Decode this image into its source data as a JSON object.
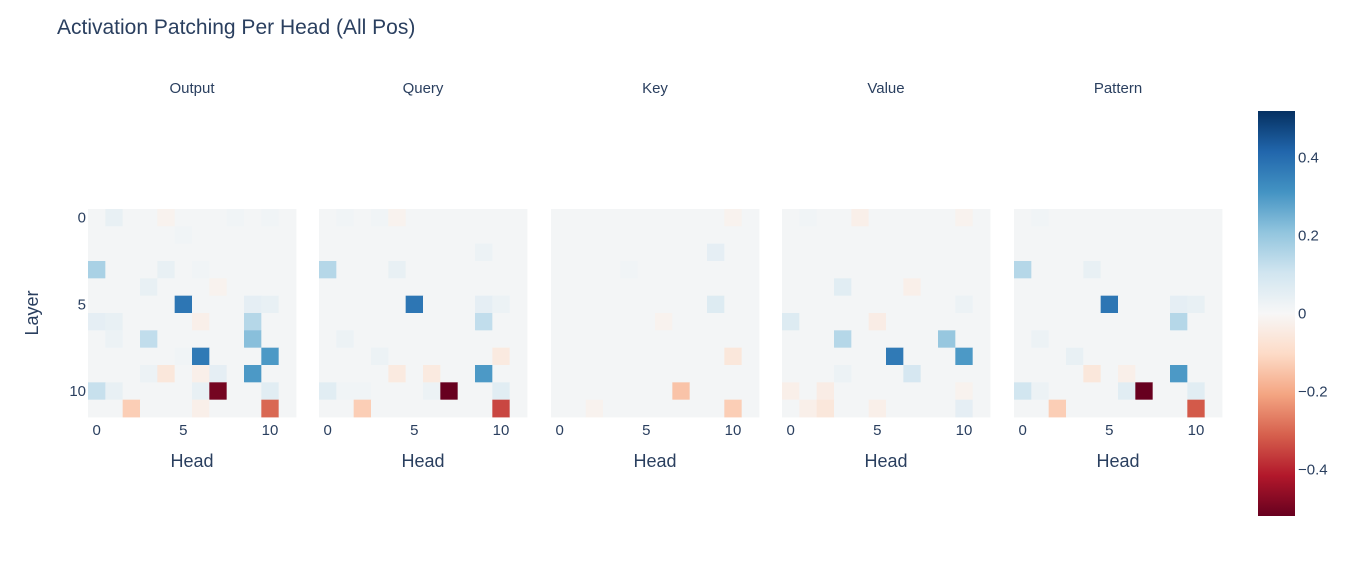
{
  "chart_data": {
    "type": "heatmap",
    "title": "Activation Patching Per Head (All Pos)",
    "xlabel": "Head",
    "ylabel": "Layer",
    "n_heads": 12,
    "n_layers": 12,
    "x_ticks": [
      0,
      5,
      10
    ],
    "y_ticks": [
      0,
      5,
      10
    ],
    "colorscale": "RdBu",
    "zrange": [
      -0.52,
      0.52
    ],
    "colorbar_ticks": [
      0.4,
      0.2,
      0,
      -0.2,
      -0.4
    ],
    "colorbar_tick_labels": [
      "0.4",
      "0.2",
      "0",
      "−0.2",
      "−0.4"
    ],
    "panels": [
      {
        "name": "Output",
        "cells": [
          [
            0,
            1,
            0.04
          ],
          [
            0,
            4,
            -0.02
          ],
          [
            0,
            8,
            0.02
          ],
          [
            0,
            10,
            0.02
          ],
          [
            1,
            5,
            0.02
          ],
          [
            1,
            9,
            0.01
          ],
          [
            3,
            0,
            0.17
          ],
          [
            3,
            4,
            0.04
          ],
          [
            3,
            6,
            0.02
          ],
          [
            4,
            3,
            0.04
          ],
          [
            4,
            7,
            -0.02
          ],
          [
            5,
            5,
            0.38
          ],
          [
            5,
            9,
            0.05
          ],
          [
            5,
            10,
            0.04
          ],
          [
            6,
            0,
            0.05
          ],
          [
            6,
            1,
            0.04
          ],
          [
            6,
            6,
            -0.03
          ],
          [
            6,
            9,
            0.15
          ],
          [
            7,
            1,
            0.03
          ],
          [
            7,
            3,
            0.13
          ],
          [
            7,
            9,
            0.22
          ],
          [
            8,
            5,
            0.02
          ],
          [
            8,
            6,
            0.37
          ],
          [
            8,
            10,
            0.3
          ],
          [
            9,
            3,
            0.03
          ],
          [
            9,
            4,
            -0.06
          ],
          [
            9,
            6,
            -0.03
          ],
          [
            9,
            7,
            0.05
          ],
          [
            9,
            9,
            0.3
          ],
          [
            10,
            0,
            0.12
          ],
          [
            10,
            1,
            0.04
          ],
          [
            10,
            6,
            0.04
          ],
          [
            10,
            7,
            -0.5
          ],
          [
            10,
            10,
            0.06
          ],
          [
            11,
            2,
            -0.13
          ],
          [
            11,
            6,
            -0.03
          ],
          [
            11,
            10,
            -0.3
          ]
        ]
      },
      {
        "name": "Query",
        "cells": [
          [
            0,
            1,
            0.02
          ],
          [
            0,
            3,
            0.02
          ],
          [
            0,
            4,
            -0.02
          ],
          [
            2,
            9,
            0.03
          ],
          [
            3,
            0,
            0.15
          ],
          [
            3,
            4,
            0.04
          ],
          [
            5,
            5,
            0.38
          ],
          [
            5,
            9,
            0.05
          ],
          [
            5,
            10,
            0.03
          ],
          [
            6,
            9,
            0.13
          ],
          [
            7,
            1,
            0.03
          ],
          [
            8,
            3,
            0.03
          ],
          [
            8,
            10,
            -0.05
          ],
          [
            9,
            4,
            -0.05
          ],
          [
            9,
            6,
            -0.05
          ],
          [
            9,
            9,
            0.3
          ],
          [
            10,
            0,
            0.06
          ],
          [
            10,
            1,
            0.02
          ],
          [
            10,
            2,
            0.02
          ],
          [
            10,
            6,
            0.03
          ],
          [
            10,
            7,
            -0.52
          ],
          [
            10,
            10,
            0.06
          ],
          [
            11,
            2,
            -0.13
          ],
          [
            11,
            10,
            -0.35
          ]
        ]
      },
      {
        "name": "Key",
        "cells": [
          [
            0,
            3,
            0.01
          ],
          [
            0,
            10,
            -0.02
          ],
          [
            2,
            9,
            0.05
          ],
          [
            3,
            4,
            0.02
          ],
          [
            5,
            9,
            0.07
          ],
          [
            6,
            6,
            -0.02
          ],
          [
            8,
            10,
            -0.06
          ],
          [
            10,
            7,
            -0.15
          ],
          [
            11,
            2,
            -0.02
          ],
          [
            11,
            10,
            -0.13
          ]
        ]
      },
      {
        "name": "Value",
        "cells": [
          [
            0,
            1,
            0.02
          ],
          [
            0,
            4,
            -0.03
          ],
          [
            0,
            10,
            -0.02
          ],
          [
            4,
            3,
            0.06
          ],
          [
            4,
            7,
            -0.03
          ],
          [
            5,
            10,
            0.03
          ],
          [
            6,
            0,
            0.07
          ],
          [
            6,
            5,
            -0.04
          ],
          [
            7,
            3,
            0.15
          ],
          [
            7,
            9,
            0.2
          ],
          [
            8,
            6,
            0.37
          ],
          [
            8,
            10,
            0.3
          ],
          [
            9,
            3,
            0.03
          ],
          [
            9,
            7,
            0.09
          ],
          [
            10,
            0,
            -0.03
          ],
          [
            10,
            2,
            -0.04
          ],
          [
            10,
            10,
            -0.02
          ],
          [
            11,
            1,
            -0.03
          ],
          [
            11,
            2,
            -0.06
          ],
          [
            11,
            5,
            -0.03
          ],
          [
            11,
            10,
            0.05
          ]
        ]
      },
      {
        "name": "Pattern",
        "cells": [
          [
            0,
            1,
            0.02
          ],
          [
            3,
            0,
            0.15
          ],
          [
            3,
            4,
            0.04
          ],
          [
            5,
            5,
            0.38
          ],
          [
            5,
            9,
            0.05
          ],
          [
            5,
            10,
            0.04
          ],
          [
            6,
            9,
            0.15
          ],
          [
            7,
            1,
            0.03
          ],
          [
            8,
            3,
            0.04
          ],
          [
            9,
            4,
            -0.06
          ],
          [
            9,
            6,
            -0.03
          ],
          [
            9,
            9,
            0.3
          ],
          [
            10,
            0,
            0.1
          ],
          [
            10,
            1,
            0.03
          ],
          [
            10,
            6,
            0.06
          ],
          [
            10,
            7,
            -0.52
          ],
          [
            10,
            10,
            0.06
          ],
          [
            11,
            2,
            -0.13
          ],
          [
            11,
            10,
            -0.32
          ]
        ]
      }
    ]
  }
}
